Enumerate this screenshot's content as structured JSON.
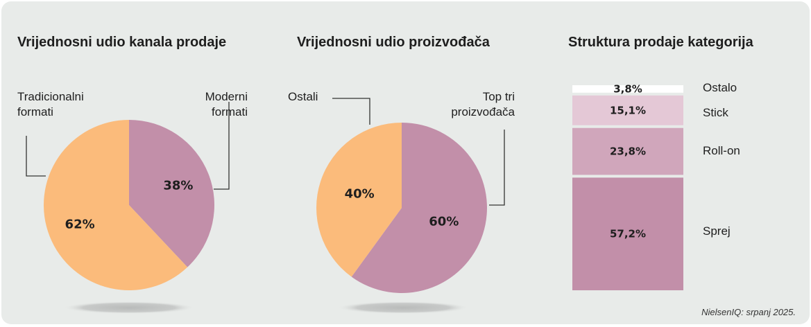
{
  "colors": {
    "orange": "#fbbb7b",
    "mauve": "#c28fa9",
    "mauve_mid": "#d0a6bb",
    "mauve_light": "#e4c8d6",
    "white": "#ffffff",
    "background": "#e8ebe9"
  },
  "chart_data": [
    {
      "type": "pie",
      "title": "Vrijednosni udio kanala prodaje",
      "slices": [
        {
          "label_lines": [
            "Moderni",
            "formati"
          ],
          "value": 38,
          "value_label": "38%",
          "color": "#c28fa9"
        },
        {
          "label_lines": [
            "Tradicionalni",
            "formati"
          ],
          "value": 62,
          "value_label": "62%",
          "color": "#fbbb7b"
        }
      ]
    },
    {
      "type": "pie",
      "title": "Vrijednosni udio proizvođača",
      "slices": [
        {
          "label_lines": [
            "Top tri",
            "proizvođača"
          ],
          "value": 60,
          "value_label": "60%",
          "color": "#c28fa9"
        },
        {
          "label_lines": [
            "Ostali"
          ],
          "value": 40,
          "value_label": "40%",
          "color": "#fbbb7b"
        }
      ]
    },
    {
      "type": "bar",
      "stacked": true,
      "title": "Struktura prodaje kategorija",
      "segments": [
        {
          "label": "Ostalo",
          "value": 3.8,
          "value_label": "3,8%",
          "color": "#ffffff"
        },
        {
          "label": "Stick",
          "value": 15.1,
          "value_label": "15,1%",
          "color": "#e4c8d6"
        },
        {
          "label": "Roll-on",
          "value": 23.8,
          "value_label": "23,8%",
          "color": "#d0a6bb"
        },
        {
          "label": "Sprej",
          "value": 57.2,
          "value_label": "57,2%",
          "color": "#c28fa9"
        }
      ]
    }
  ],
  "source": "NielsenIQ: srpanj 2025."
}
